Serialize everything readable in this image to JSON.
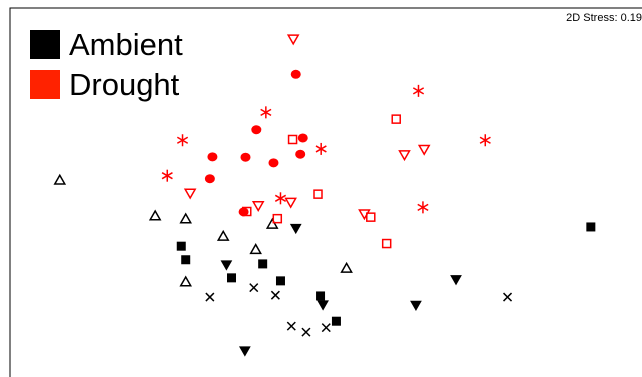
{
  "chart_data": {
    "type": "scatter",
    "title": "",
    "annotation": "2D Stress: 0.19",
    "xlabel": "",
    "ylabel": "",
    "xlim": [
      0,
      1
    ],
    "ylim": [
      0,
      1
    ],
    "axes_visible": false,
    "grid": false,
    "legend_position": "top-left",
    "legend": [
      {
        "name": "Ambient",
        "color": "#000000"
      },
      {
        "name": "Drought",
        "color": "#ff0000"
      }
    ],
    "series": [
      {
        "group": "Ambient",
        "marker": "open-triangle-up",
        "color": "#000000",
        "points": [
          [
            0.094,
            0.522
          ],
          [
            0.244,
            0.427
          ],
          [
            0.292,
            0.419
          ],
          [
            0.351,
            0.373
          ],
          [
            0.402,
            0.338
          ],
          [
            0.428,
            0.405
          ],
          [
            0.292,
            0.252
          ],
          [
            0.545,
            0.288
          ]
        ]
      },
      {
        "group": "Ambient",
        "marker": "filled-triangle-down",
        "color": "#000000",
        "points": [
          [
            0.465,
            0.395
          ],
          [
            0.356,
            0.298
          ],
          [
            0.508,
            0.192
          ],
          [
            0.385,
            0.07
          ],
          [
            0.654,
            0.191
          ],
          [
            0.717,
            0.259
          ]
        ]
      },
      {
        "group": "Ambient",
        "marker": "filled-square",
        "color": "#000000",
        "points": [
          [
            0.285,
            0.347
          ],
          [
            0.292,
            0.311
          ],
          [
            0.364,
            0.263
          ],
          [
            0.413,
            0.3
          ],
          [
            0.441,
            0.255
          ],
          [
            0.504,
            0.215
          ],
          [
            0.529,
            0.148
          ],
          [
            0.929,
            0.398
          ]
        ]
      },
      {
        "group": "Ambient",
        "marker": "cross",
        "color": "#000000",
        "points": [
          [
            0.33,
            0.212
          ],
          [
            0.399,
            0.237
          ],
          [
            0.433,
            0.217
          ],
          [
            0.458,
            0.135
          ],
          [
            0.481,
            0.119
          ],
          [
            0.513,
            0.131
          ],
          [
            0.798,
            0.212
          ]
        ]
      },
      {
        "group": "Drought",
        "marker": "open-triangle-down",
        "color": "#ff0000",
        "points": [
          [
            0.461,
            0.897
          ],
          [
            0.299,
            0.488
          ],
          [
            0.406,
            0.455
          ],
          [
            0.457,
            0.464
          ],
          [
            0.573,
            0.433
          ],
          [
            0.636,
            0.59
          ],
          [
            0.667,
            0.604
          ]
        ]
      },
      {
        "group": "Drought",
        "marker": "filled-circle",
        "color": "#ff0000",
        "points": [
          [
            0.465,
            0.803
          ],
          [
            0.403,
            0.656
          ],
          [
            0.476,
            0.634
          ],
          [
            0.334,
            0.584
          ],
          [
            0.386,
            0.583
          ],
          [
            0.43,
            0.568
          ],
          [
            0.472,
            0.591
          ],
          [
            0.33,
            0.526
          ],
          [
            0.383,
            0.438
          ]
        ]
      },
      {
        "group": "Drought",
        "marker": "asterisk",
        "color": "#ff0000",
        "points": [
          [
            0.658,
            0.759
          ],
          [
            0.418,
            0.702
          ],
          [
            0.287,
            0.628
          ],
          [
            0.763,
            0.628
          ],
          [
            0.505,
            0.605
          ],
          [
            0.263,
            0.534
          ],
          [
            0.441,
            0.474
          ],
          [
            0.665,
            0.45
          ]
        ]
      },
      {
        "group": "Drought",
        "marker": "open-square",
        "color": "#ff0000",
        "points": [
          [
            0.623,
            0.684
          ],
          [
            0.46,
            0.63
          ],
          [
            0.5,
            0.485
          ],
          [
            0.388,
            0.439
          ],
          [
            0.436,
            0.42
          ],
          [
            0.583,
            0.424
          ],
          [
            0.608,
            0.354
          ]
        ]
      }
    ]
  }
}
